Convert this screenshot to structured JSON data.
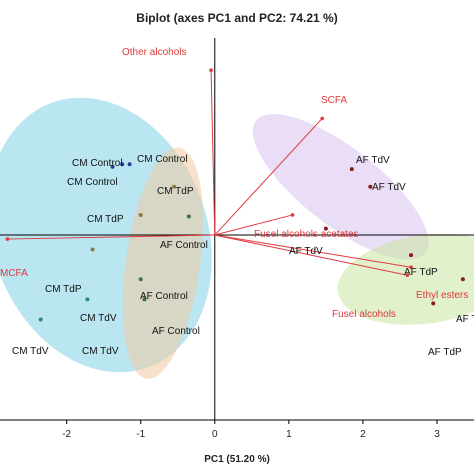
{
  "chart_data": {
    "type": "scatter",
    "title": "Biplot (axes PC1 and PC2: 74.21 %)",
    "xlabel": "PC1 (51.20 %)",
    "ylabel": "",
    "xlim": [
      -2.9,
      3.5
    ],
    "ylim": [
      -2.3,
      2.5
    ],
    "xticks": [
      -2,
      -1,
      0,
      1,
      2,
      3
    ],
    "xtick_labels": [
      "-2",
      "-1",
      "0",
      "1",
      "2",
      "3"
    ],
    "grid": false,
    "legend": "none",
    "colors": {
      "vector": "#e0393e",
      "cm_control": "#1f3f9a",
      "cm_tdp": "#8a7a4a",
      "cm_tdv": "#2a8a7a",
      "af_control": "#3f6f3f",
      "af_tdv": "#8b1a1a",
      "af_tdp": "#8b1a1a",
      "ellipse_cm": "#7fd1e6",
      "ellipse_af_control": "#f2c8a0",
      "ellipse_af_tdv": "#d9c2ee",
      "ellipse_af_tdp": "#c8e6a0"
    },
    "variables": [
      {
        "name": "Other alcohols",
        "x": -0.05,
        "y": 2.05
      },
      {
        "name": "SCFA",
        "x": 1.45,
        "y": 1.45
      },
      {
        "name": "Fusel alcohols acetates",
        "x": 1.05,
        "y": 0.25
      },
      {
        "name": "MCFA",
        "x": -2.8,
        "y": -0.05
      },
      {
        "name": "Ethyl esters",
        "x": 2.65,
        "y": -0.4
      },
      {
        "name": "Fusel alcohols",
        "x": 2.6,
        "y": -0.5
      }
    ],
    "points": [
      {
        "group": "cm_control",
        "label": "CM Control",
        "x": -1.15,
        "y": 0.88
      },
      {
        "group": "cm_control",
        "label": "CM Control",
        "x": -1.25,
        "y": 0.88
      },
      {
        "group": "cm_control",
        "label": "CM Control",
        "x": -1.38,
        "y": 0.85
      },
      {
        "group": "cm_tdp",
        "label": "CM TdP",
        "x": -0.55,
        "y": 0.6
      },
      {
        "group": "cm_tdp",
        "label": "CM TdP",
        "x": -1.0,
        "y": 0.25
      },
      {
        "group": "cm_tdp",
        "label": "CM TdP",
        "x": -1.65,
        "y": -0.18
      },
      {
        "group": "cm_tdv",
        "label": "CM TdV",
        "x": -1.72,
        "y": -0.8
      },
      {
        "group": "cm_tdv",
        "label": "CM TdV",
        "x": -2.35,
        "y": -1.05
      },
      {
        "group": "af_control",
        "label": "AF Control",
        "x": -0.35,
        "y": 0.23
      },
      {
        "group": "af_control",
        "label": "AF Control",
        "x": -1.0,
        "y": -0.55
      },
      {
        "group": "af_control",
        "label": "AF Control",
        "x": -0.95,
        "y": -0.8
      },
      {
        "group": "af_tdv",
        "label": "AF TdV",
        "x": 1.85,
        "y": 0.82
      },
      {
        "group": "af_tdv",
        "label": "AF TdV",
        "x": 2.1,
        "y": 0.6
      },
      {
        "group": "af_tdv",
        "label": "AF TdV",
        "x": 1.5,
        "y": 0.08
      },
      {
        "group": "af_tdp",
        "label": "AF TdP",
        "x": 2.65,
        "y": -0.25
      },
      {
        "group": "af_tdp",
        "label": "AF TdP",
        "x": 3.35,
        "y": -0.55
      },
      {
        "group": "af_tdp",
        "label": "AF TdP",
        "x": 2.95,
        "y": -0.85
      }
    ],
    "point_label_text": {
      "cm_control_a": "CM Control",
      "cm_control_b": "CM Control",
      "cm_tdp_a": "CM TdP",
      "cm_tdp_b": "CM TdP",
      "cm_tdv_a": "CM TdV",
      "cm_tdv_b": "CM TdV",
      "af_control_a": "AF Control",
      "af_control_b": "AF Control",
      "af_control_c": "AF Control",
      "af_tdv_a": "AF TdV",
      "af_tdv_b": "AF TdV",
      "af_tdv_c": "AF TdV",
      "af_tdp_a": "AF TdP",
      "af_tdp_b": "AF T",
      "af_tdp_c": "AF TdP"
    },
    "ellipses": [
      {
        "group": "cm",
        "cx": -1.55,
        "cy": 0.0,
        "rx": 1.45,
        "ry": 1.75,
        "angle_deg": -20
      },
      {
        "group": "af_control",
        "cx": -0.7,
        "cy": -0.35,
        "rx": 0.5,
        "ry": 1.45,
        "angle_deg": 8
      },
      {
        "group": "af_tdv",
        "cx": 1.7,
        "cy": 0.6,
        "rx": 1.45,
        "ry": 0.48,
        "angle_deg": 38
      },
      {
        "group": "af_tdp",
        "cx": 2.85,
        "cy": -0.55,
        "rx": 1.2,
        "ry": 0.55,
        "angle_deg": -8
      }
    ]
  }
}
